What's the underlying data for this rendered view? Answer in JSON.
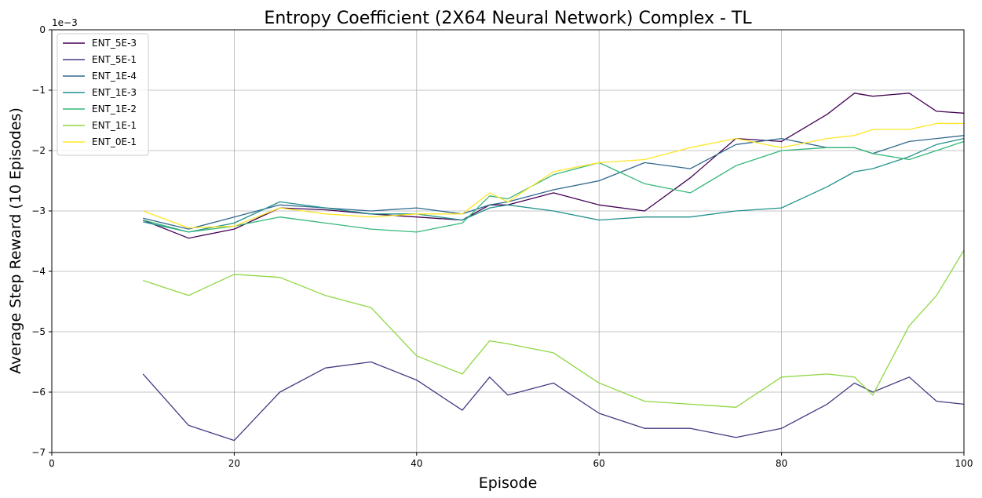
{
  "chart_data": {
    "type": "line",
    "title": "Entropy Coefficient (2X64 Neural Network) Complex - TL",
    "xlabel": "Episode",
    "ylabel": "Average Step Reward (10 Episodes)",
    "y_offset_label": "1e−3",
    "xlim": [
      0,
      100
    ],
    "ylim": [
      -7,
      0
    ],
    "xticks": [
      0,
      20,
      40,
      60,
      80,
      100
    ],
    "yticks": [
      -7,
      -6,
      -5,
      -4,
      -3,
      -2,
      -1,
      0
    ],
    "ytick_labels": [
      "−7",
      "−6",
      "−5",
      "−4",
      "−3",
      "−2",
      "−1",
      "0"
    ],
    "grid": true,
    "legend_position": "top-left",
    "x": [
      10,
      15,
      20,
      25,
      30,
      35,
      40,
      45,
      48,
      50,
      55,
      60,
      65,
      70,
      75,
      80,
      85,
      88,
      90,
      94,
      97,
      100
    ],
    "series": [
      {
        "name": "ENT_5E-3",
        "color": "#440154",
        "values": [
          -3.15,
          -3.45,
          -3.3,
          -2.95,
          -2.98,
          -3.05,
          -3.1,
          -3.15,
          -2.9,
          -2.9,
          -2.7,
          -2.9,
          -3.0,
          -2.45,
          -1.8,
          -1.85,
          -1.4,
          -1.05,
          -1.1,
          -1.05,
          -1.35,
          -1.38
        ]
      },
      {
        "name": "ENT_5E-1",
        "color": "#443983",
        "values": [
          -5.7,
          -6.55,
          -6.8,
          -6.0,
          -5.6,
          -5.5,
          -5.8,
          -6.3,
          -5.75,
          -6.05,
          -5.85,
          -6.35,
          -6.6,
          -6.6,
          -6.75,
          -6.6,
          -6.2,
          -5.85,
          -6.0,
          -5.75,
          -6.15,
          -6.2
        ]
      },
      {
        "name": "ENT_1E-4",
        "color": "#31688e",
        "values": [
          -3.12,
          -3.3,
          -3.1,
          -2.9,
          -2.95,
          -3.0,
          -2.95,
          -3.05,
          -2.9,
          -2.85,
          -2.65,
          -2.5,
          -2.2,
          -2.3,
          -1.9,
          -1.8,
          -1.95,
          -1.95,
          -2.05,
          -1.85,
          -1.8,
          -1.75
        ]
      },
      {
        "name": "ENT_1E-3",
        "color": "#21918c",
        "values": [
          -3.18,
          -3.35,
          -3.2,
          -2.85,
          -2.95,
          -3.05,
          -3.05,
          -3.15,
          -2.95,
          -2.9,
          -3.0,
          -3.15,
          -3.1,
          -3.1,
          -3.0,
          -2.95,
          -2.6,
          -2.35,
          -2.3,
          -2.1,
          -1.9,
          -1.8
        ]
      },
      {
        "name": "ENT_1E-2",
        "color": "#35b779",
        "values": [
          -3.15,
          -3.35,
          -3.25,
          -3.1,
          -3.2,
          -3.3,
          -3.35,
          -3.2,
          -2.75,
          -2.8,
          -2.4,
          -2.2,
          -2.55,
          -2.7,
          -2.25,
          -2.0,
          -1.95,
          -1.95,
          -2.05,
          -2.15,
          -2.0,
          -1.85
        ]
      },
      {
        "name": "ENT_1E-1",
        "color": "#90d743",
        "values": [
          -4.15,
          -4.4,
          -4.05,
          -4.1,
          -4.4,
          -4.6,
          -5.4,
          -5.7,
          -5.15,
          -5.2,
          -5.35,
          -5.85,
          -6.15,
          -6.2,
          -6.25,
          -5.75,
          -5.7,
          -5.75,
          -6.05,
          -4.9,
          -4.4,
          -3.65
        ]
      },
      {
        "name": "ENT_0E-1",
        "color": "#fde725",
        "values": [
          -3.0,
          -3.28,
          -3.25,
          -2.95,
          -3.05,
          -3.1,
          -3.05,
          -3.05,
          -2.7,
          -2.85,
          -2.35,
          -2.2,
          -2.15,
          -1.95,
          -1.8,
          -1.95,
          -1.8,
          -1.75,
          -1.65,
          -1.65,
          -1.55,
          -1.55
        ]
      }
    ]
  }
}
